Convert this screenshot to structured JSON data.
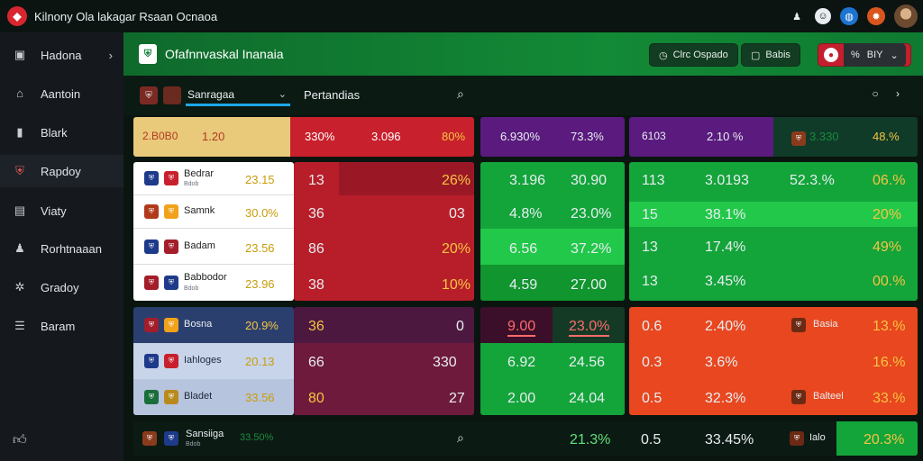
{
  "app": {
    "title": "Kilnony Ola lakagar Rsaan Ocnaoa"
  },
  "sidebar": {
    "items": [
      {
        "label": "Hadona",
        "icon": "folder-icon",
        "chevron": "›"
      },
      {
        "label": "Aantoin",
        "icon": "home-icon",
        "chevron": ""
      },
      {
        "label": "Blark",
        "icon": "building-icon",
        "chevron": ""
      },
      {
        "label": "Rapdoy",
        "icon": "shield-icon",
        "chevron": ""
      },
      {
        "label": "Viaty",
        "icon": "chart-icon",
        "chevron": ""
      },
      {
        "label": "Rorhtnaaan",
        "icon": "user-icon",
        "chevron": ""
      },
      {
        "label": "Gradoy",
        "icon": "gear-icon",
        "chevron": ""
      },
      {
        "label": "Baram",
        "icon": "list-icon",
        "chevron": ""
      }
    ],
    "bottom_icon": "thumbs-up-icon"
  },
  "header": {
    "title": "Ofafnnvaskal Inanaia",
    "buttons": {
      "b1": "Clrc Ospado",
      "b2": "Babis",
      "b3_a": "%",
      "b3_b": "BIY"
    }
  },
  "toolbar": {
    "select_value": "Sanragaa",
    "label": "Pertandias"
  },
  "top_strip": {
    "p1": [
      "2.B0B0",
      "1.20",
      "330%",
      "3.096",
      "80%"
    ],
    "p2": [
      "6.930%",
      "73.3%"
    ],
    "p3": [
      "6103",
      "2.10 %",
      "3.330",
      "48.%"
    ]
  },
  "teams_a": [
    {
      "name": "Bedrar",
      "sub": "Bdob",
      "v": "23.15",
      "n": "13",
      "r": "26%"
    },
    {
      "name": "Samnk",
      "sub": "",
      "v": "30.0%",
      "n": "36",
      "r": "03"
    },
    {
      "name": "Badam",
      "sub": "",
      "v": "23.56",
      "n": "86",
      "r": "20%"
    },
    {
      "name": "Babbodor",
      "sub": "Bdob",
      "v": "23.96",
      "n": "38",
      "r": "10%"
    }
  ],
  "green_a": [
    [
      "3.196",
      "30.90"
    ],
    [
      "4.8%",
      "23.0%"
    ],
    [
      "6.56",
      "37.2%"
    ],
    [
      "4.59",
      "27.00"
    ]
  ],
  "right_a": [
    [
      "113",
      "3.0193",
      "52.3.%",
      "06.%"
    ],
    [
      "15",
      "38.1%",
      "",
      "20%"
    ],
    [
      "13",
      "17.4%",
      "",
      "49%"
    ],
    [
      "13",
      "3.45%",
      "",
      "00.%"
    ]
  ],
  "teams_b": [
    {
      "name": "Bosna",
      "v": "20.9%",
      "n": "36",
      "r": "0"
    },
    {
      "name": "Iahloges",
      "v": "20.13",
      "n": "66",
      "r": "330"
    },
    {
      "name": "Bladet",
      "v": "33.56",
      "n": "80",
      "r": "27"
    }
  ],
  "mid_b": [
    [
      "9.00",
      "23.0%"
    ],
    [
      "6.92",
      "24.56"
    ],
    [
      "2.00",
      "24.04"
    ]
  ],
  "right_b": [
    {
      "a": "0.6",
      "b": "2.40%",
      "name": "Basia",
      "c": "13.%"
    },
    {
      "a": "0.3",
      "b": "3.6%",
      "name": "",
      "c": "16.%"
    },
    {
      "a": "0.5",
      "b": "32.3%",
      "name": "Balteel",
      "c": "33.%"
    }
  ],
  "bottom_row": {
    "name": "Sansiiga",
    "sub": "Bdob",
    "v": "33.50%",
    "g": "21.3%",
    "a": "0.5",
    "b": "33.45%",
    "tag": "Ialo",
    "c": "20.3%"
  },
  "colors": {
    "green": "#13a43a",
    "red": "#c8202c",
    "purple": "#5a1a7e",
    "orange": "#e8471f"
  }
}
